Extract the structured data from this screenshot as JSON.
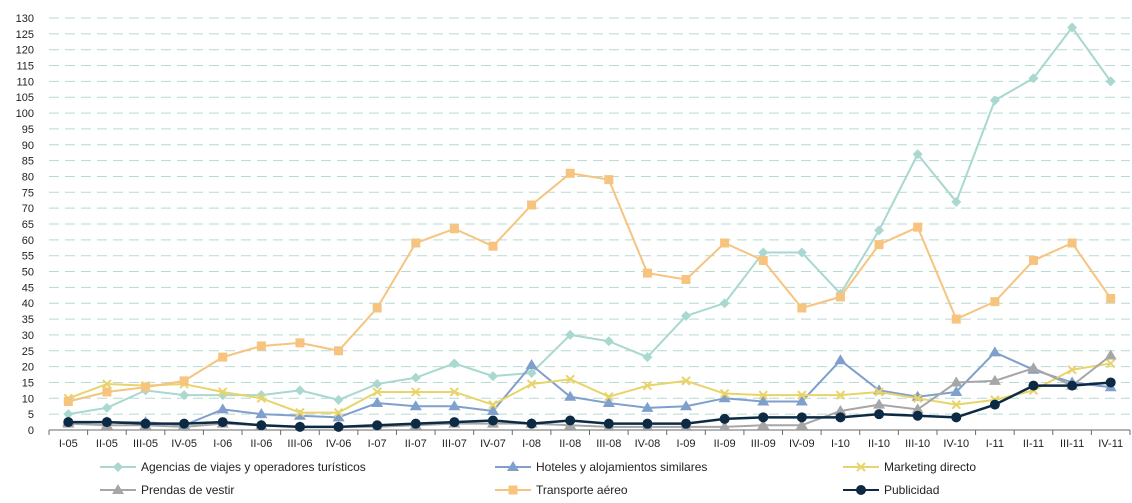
{
  "chart_data": {
    "type": "line",
    "title": "",
    "xlabel": "",
    "ylabel": "",
    "ylim": [
      0,
      130
    ],
    "y_ticks": [
      0,
      5,
      10,
      15,
      20,
      25,
      30,
      35,
      40,
      45,
      50,
      55,
      60,
      65,
      70,
      75,
      80,
      85,
      90,
      95,
      100,
      105,
      110,
      115,
      120,
      125,
      130
    ],
    "grid": "horizontal dashed",
    "legend_placement": "bottom",
    "categories": [
      "I-05",
      "II-05",
      "III-05",
      "IV-05",
      "I-06",
      "II-06",
      "III-06",
      "IV-06",
      "I-07",
      "II-07",
      "III-07",
      "IV-07",
      "I-08",
      "II-08",
      "III-08",
      "IV-08",
      "I-09",
      "II-09",
      "III-09",
      "IV-09",
      "I-10",
      "II-10",
      "III-10",
      "IV-10",
      "I-11",
      "II-11",
      "III-11",
      "IV-11"
    ],
    "series": [
      {
        "name": "Agencias de viajes y operadores turísticos",
        "color": "#a8d8cf",
        "marker": "diamond",
        "values": [
          5,
          7,
          12.5,
          11,
          11,
          11,
          12.5,
          9.5,
          14.5,
          16.5,
          21,
          17,
          18,
          30,
          28,
          23,
          36,
          40,
          56,
          56,
          43,
          63,
          87,
          72,
          104,
          111,
          127,
          110
        ]
      },
      {
        "name": "Hoteles y alojamientos similares",
        "color": "#7f9fcc",
        "marker": "triangle",
        "values": [
          2.5,
          2.5,
          2.5,
          1.5,
          6.5,
          5,
          4.5,
          4,
          8.5,
          7.5,
          7.5,
          6,
          20.5,
          10.5,
          8.5,
          7,
          7.5,
          10,
          9,
          9,
          22,
          12.5,
          10.5,
          12,
          24.5,
          19,
          15,
          13.5
        ]
      },
      {
        "name": "Marketing directo",
        "color": "#e8d46a",
        "marker": "cross",
        "values": [
          10,
          14.5,
          14,
          14.5,
          12,
          10,
          5.5,
          5.5,
          12,
          12,
          12,
          8,
          14.5,
          16,
          10.5,
          14,
          15.5,
          11.5,
          11,
          11,
          11,
          12,
          10,
          8,
          9.5,
          12.5,
          19,
          21
        ]
      },
      {
        "name": "Prendas de vestir",
        "color": "#a6a6a6",
        "marker": "triangle",
        "values": [
          2,
          1.5,
          1.5,
          1,
          2,
          1.5,
          1,
          1,
          1,
          1.5,
          2,
          2,
          2,
          1.5,
          1,
          1,
          1,
          1,
          1.5,
          1.5,
          6,
          8,
          6.5,
          15,
          15.5,
          19.5,
          14,
          23.5
        ]
      },
      {
        "name": "Transporte aéreo",
        "color": "#f6c47e",
        "marker": "square",
        "values": [
          9,
          12,
          13.5,
          15.5,
          23,
          26.5,
          27.5,
          25,
          38.5,
          59,
          63.5,
          58,
          71,
          81,
          79,
          49.5,
          47.5,
          59,
          53.5,
          38.5,
          42,
          58.5,
          64,
          35,
          40.5,
          53.5,
          59,
          41.5
        ]
      },
      {
        "name": "Publicidad",
        "color": "#0d2a45",
        "marker": "circle",
        "values": [
          2.5,
          2.5,
          2,
          2,
          2.5,
          1.5,
          1,
          1,
          1.5,
          2,
          2.5,
          3,
          2,
          3,
          2,
          2,
          2,
          3.5,
          4,
          4,
          4,
          5,
          4.5,
          4,
          8,
          14,
          14,
          15
        ]
      }
    ]
  }
}
